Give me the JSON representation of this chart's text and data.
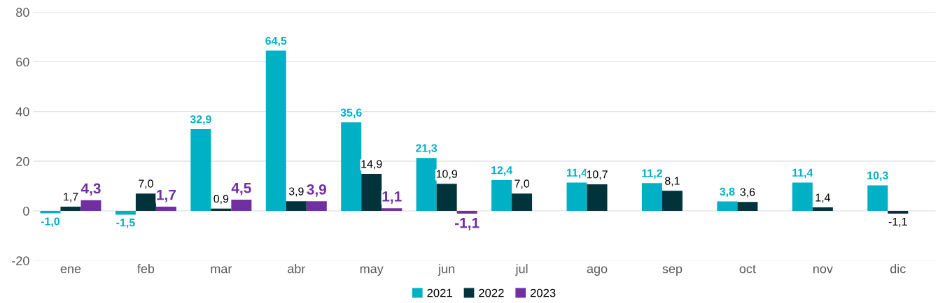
{
  "chart_data": {
    "type": "bar",
    "categories": [
      "ene",
      "feb",
      "mar",
      "abr",
      "may",
      "jun",
      "jul",
      "ago",
      "sep",
      "oct",
      "nov",
      "dic"
    ],
    "series": [
      {
        "name": "2021",
        "color": "#00b0c4",
        "values": [
          -1.0,
          -1.5,
          32.9,
          64.5,
          35.6,
          21.3,
          12.4,
          11.4,
          11.2,
          3.8,
          11.4,
          10.3
        ],
        "value_labels": [
          "-1,0",
          "-1,5",
          "32,9",
          "64,5",
          "35,6",
          "21,3",
          "12,4",
          "11,4",
          "11,2",
          "3,8",
          "11,4",
          "10,3"
        ]
      },
      {
        "name": "2022",
        "color": "#00343a",
        "values": [
          1.7,
          7.0,
          0.9,
          3.9,
          14.9,
          10.9,
          7.0,
          10.7,
          8.1,
          3.6,
          1.4,
          -1.1
        ],
        "value_labels": [
          "1,7",
          "7,0",
          "0,9",
          "3,9",
          "14,9",
          "10,9",
          "7,0",
          "10,7",
          "8,1",
          "3,6",
          "1,4",
          "-1,1"
        ]
      },
      {
        "name": "2023",
        "color": "#7030a0",
        "values": [
          4.3,
          1.7,
          4.5,
          3.9,
          1.1,
          -1.1,
          null,
          null,
          null,
          null,
          null,
          null
        ],
        "value_labels": [
          "4,3",
          "1,7",
          "4,5",
          "3,9",
          "1,1",
          "-1,1",
          null,
          null,
          null,
          null,
          null,
          null
        ]
      }
    ],
    "ylim": [
      -20,
      80
    ],
    "yticks": [
      -20,
      0,
      20,
      40,
      60,
      80
    ],
    "grid": "y",
    "legend": "bottom"
  }
}
